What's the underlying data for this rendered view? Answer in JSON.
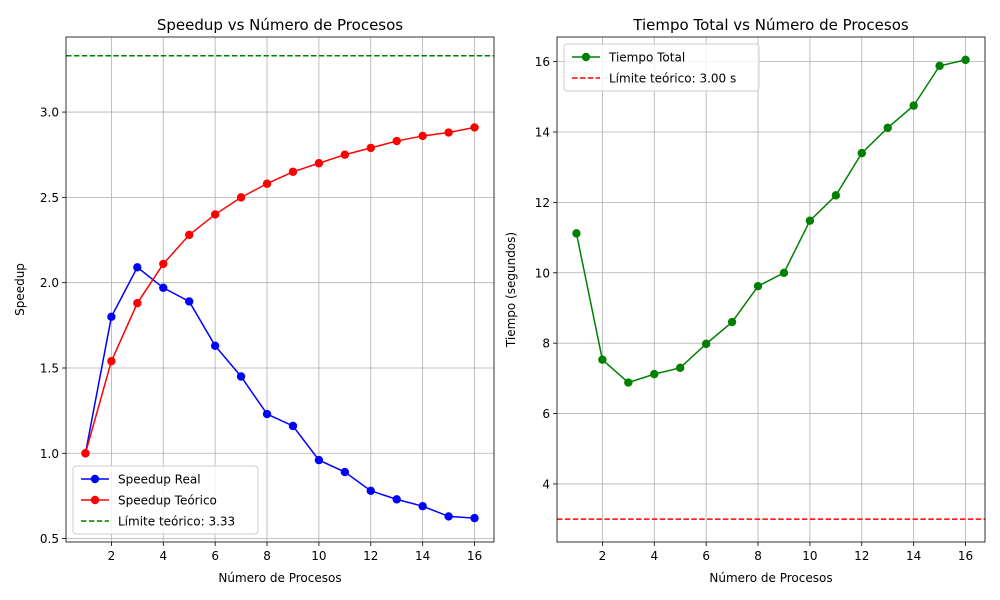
{
  "chart_data": [
    {
      "type": "line",
      "title": "Speedup vs Número de Procesos",
      "xlabel": "Número de Procesos",
      "ylabel": "Speedup",
      "xlim": [
        0.25,
        16.75
      ],
      "ylim": [
        0.48,
        3.44
      ],
      "xticks": [
        2,
        4,
        6,
        8,
        10,
        12,
        14,
        16
      ],
      "yticks": [
        0.5,
        1.0,
        1.5,
        2.0,
        2.5,
        3.0
      ],
      "ytick_labels": [
        "0.5",
        "1.0",
        "1.5",
        "2.0",
        "2.5",
        "3.0"
      ],
      "grid": true,
      "legend_position": "lower-left",
      "x": [
        1,
        2,
        3,
        4,
        5,
        6,
        7,
        8,
        9,
        10,
        11,
        12,
        13,
        14,
        15,
        16
      ],
      "series": [
        {
          "name": "Speedup Real",
          "color": "#0000ff",
          "style": "line-marker",
          "values": [
            1.0,
            1.8,
            2.09,
            1.97,
            1.89,
            1.63,
            1.45,
            1.23,
            1.16,
            0.96,
            0.89,
            0.78,
            0.73,
            0.69,
            0.63,
            0.62
          ]
        },
        {
          "name": "Speedup Teórico",
          "color": "#ff0000",
          "style": "line-marker",
          "values": [
            1.0,
            1.54,
            1.88,
            2.11,
            2.28,
            2.4,
            2.5,
            2.58,
            2.65,
            2.7,
            2.75,
            2.79,
            2.83,
            2.86,
            2.88,
            2.91
          ]
        }
      ],
      "hlines": [
        {
          "name": "Límite teórico: 3.33",
          "y": 3.33,
          "color": "#008000",
          "style": "dashed"
        }
      ]
    },
    {
      "type": "line",
      "title": "Tiempo Total vs Número de Procesos",
      "xlabel": "Número de Procesos",
      "ylabel": "Tiempo (segundos)",
      "xlim": [
        0.25,
        16.75
      ],
      "ylim": [
        2.35,
        16.7
      ],
      "xticks": [
        2,
        4,
        6,
        8,
        10,
        12,
        14,
        16
      ],
      "yticks": [
        4,
        6,
        8,
        10,
        12,
        14,
        16
      ],
      "ytick_labels": [
        "4",
        "6",
        "8",
        "10",
        "12",
        "14",
        "16"
      ],
      "grid": true,
      "legend_position": "upper-left",
      "x": [
        1,
        2,
        3,
        4,
        5,
        6,
        7,
        8,
        9,
        10,
        11,
        12,
        13,
        14,
        15,
        16
      ],
      "series": [
        {
          "name": "Tiempo Total",
          "color": "#008000",
          "style": "line-marker",
          "values": [
            11.12,
            7.53,
            6.88,
            7.12,
            7.3,
            7.98,
            8.6,
            9.62,
            10.0,
            11.48,
            12.2,
            13.4,
            14.12,
            14.75,
            15.88,
            16.05
          ]
        }
      ],
      "hlines": [
        {
          "name": "Límite teórico: 3.00 s",
          "y": 3.0,
          "color": "#ff0000",
          "style": "dashed"
        }
      ]
    }
  ]
}
